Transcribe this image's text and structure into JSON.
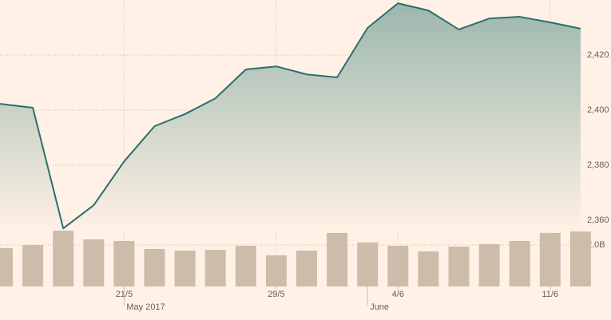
{
  "chart_data": {
    "type": "line",
    "categories": [
      null,
      null,
      null,
      null,
      "21/5",
      null,
      null,
      null,
      null,
      "29/5",
      null,
      null,
      null,
      "4/6",
      null,
      null,
      null,
      null,
      "11/6",
      null
    ],
    "x_groups": [
      {
        "label": "May 2017",
        "start": 4
      },
      {
        "label": "June",
        "start": 12
      }
    ],
    "price": {
      "color": "#2b6e70",
      "values": [
        2402.3,
        2400.9,
        2357.1,
        2365.5,
        2381.4,
        2394.2,
        2398.6,
        2404.3,
        2414.8,
        2415.9,
        2413.0,
        2411.9,
        2429.9,
        2438.8,
        2436.2,
        2429.3,
        2433.3,
        2433.9,
        2431.9,
        2429.6
      ]
    },
    "volume": {
      "color": "#cebcaa",
      "axis": "y2",
      "values": [
        1850000000,
        2000000000,
        2690000000,
        2270000000,
        2190000000,
        1810000000,
        1730000000,
        1770000000,
        1960000000,
        1500000000,
        1730000000,
        2580000000,
        2120000000,
        1960000000,
        1690000000,
        1920000000,
        2040000000,
        2190000000,
        2580000000,
        2650000000
      ]
    },
    "ylim": [
      2356,
      2440
    ],
    "yticks": [
      {
        "value": 2360,
        "label": "2,360"
      },
      {
        "value": 2380,
        "label": "2,380"
      },
      {
        "value": 2400,
        "label": "2,400"
      },
      {
        "value": 2420,
        "label": "2,420"
      }
    ],
    "y2lim": [
      0,
      3000000000
    ],
    "y2ticks": [
      {
        "value": 2000000000,
        "label": "2.0B"
      }
    ],
    "grid": true
  }
}
